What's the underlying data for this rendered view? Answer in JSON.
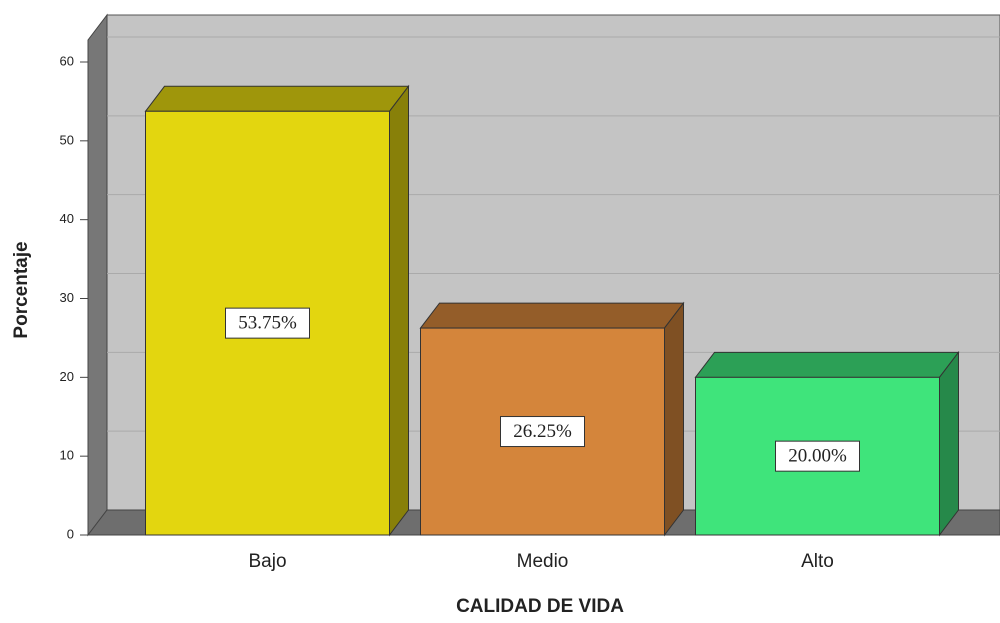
{
  "chart_data": {
    "type": "bar3d",
    "x_label": "CALIDAD DE VIDA",
    "y_label": "Porcentaje",
    "categories": [
      "Bajo",
      "Medio",
      "Alto"
    ],
    "values": [
      53.75,
      26.25,
      20.0
    ],
    "value_labels": [
      "53.75%",
      "26.25%",
      "20.00%"
    ],
    "colors": [
      "#e3d60f",
      "#d4853b",
      "#3fe47b"
    ],
    "ylim": [
      0,
      60
    ],
    "yticks": [
      0,
      10,
      20,
      30,
      40,
      50,
      60
    ],
    "grid": true
  }
}
